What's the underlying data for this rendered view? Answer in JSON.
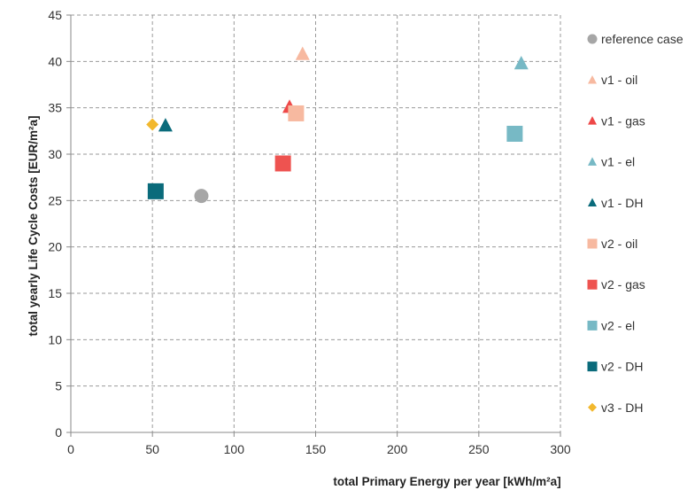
{
  "chart_data": {
    "type": "scatter",
    "xlabel": "total Primary Energy per year [kWh/m²a]",
    "ylabel": "total yearly Life Cycle Costs [EUR/m²a]",
    "xlim": [
      0,
      300
    ],
    "ylim": [
      0,
      45
    ],
    "x_ticks": [
      "0",
      "50",
      "100",
      "150",
      "200",
      "250",
      "300"
    ],
    "y_ticks": [
      "0",
      "5",
      "10",
      "15",
      "20",
      "25",
      "30",
      "35",
      "40",
      "45"
    ],
    "grid": true,
    "legend_position": "right",
    "series": [
      {
        "name": "reference case",
        "marker": "circle",
        "color": "#a6a6a6",
        "points": [
          {
            "x": 80,
            "y": 25.5
          }
        ]
      },
      {
        "name": "v1 - oil",
        "marker": "triangle",
        "color": "#f7b9a0",
        "points": [
          {
            "x": 142,
            "y": 40.8
          }
        ]
      },
      {
        "name": "v1 - gas",
        "marker": "triangle",
        "color": "#ee4848",
        "points": [
          {
            "x": 134,
            "y": 35.1
          }
        ]
      },
      {
        "name": "v1 - el",
        "marker": "triangle",
        "color": "#77b9c5",
        "points": [
          {
            "x": 276,
            "y": 39.8
          }
        ]
      },
      {
        "name": "v1 - DH",
        "marker": "triangle",
        "color": "#0a6b7b",
        "points": [
          {
            "x": 58,
            "y": 33.1
          }
        ]
      },
      {
        "name": "v2 - oil",
        "marker": "square",
        "color": "#f7b9a0",
        "points": [
          {
            "x": 138,
            "y": 34.4
          }
        ]
      },
      {
        "name": "v2 - gas",
        "marker": "square",
        "color": "#ee5350",
        "points": [
          {
            "x": 130,
            "y": 29.0
          }
        ]
      },
      {
        "name": "v2 - el",
        "marker": "square",
        "color": "#77b9c5",
        "points": [
          {
            "x": 272,
            "y": 32.2
          }
        ]
      },
      {
        "name": "v2 - DH",
        "marker": "square",
        "color": "#0a6b7b",
        "points": [
          {
            "x": 52,
            "y": 26.0
          }
        ]
      },
      {
        "name": "v3 - DH",
        "marker": "diamond",
        "color": "#f2b82e",
        "points": [
          {
            "x": 50,
            "y": 33.2
          }
        ]
      }
    ]
  }
}
